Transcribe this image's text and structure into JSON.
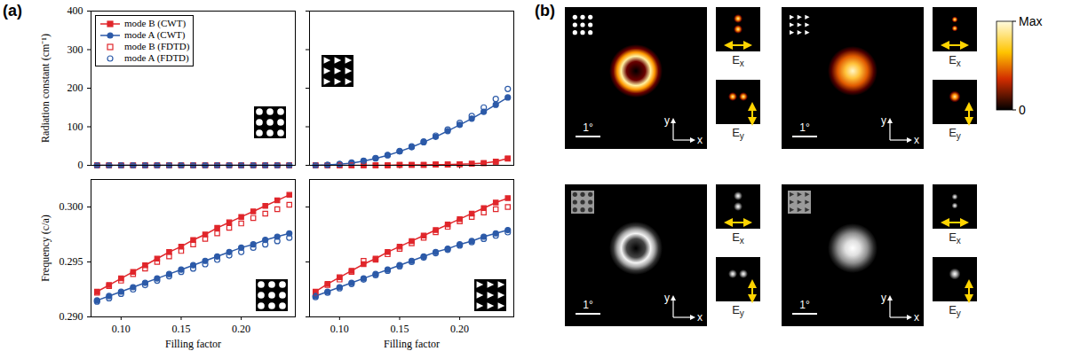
{
  "panel_labels": [
    "(a)",
    "(b)"
  ],
  "chart_data": [
    {
      "type": "line",
      "ylabel": "Radiation constant (cm⁻¹)",
      "xlim": [
        0.075,
        0.245
      ],
      "xticks": [
        {
          "value": 0.1,
          "label": "0.10"
        },
        {
          "value": 0.15,
          "label": "0.15"
        },
        {
          "value": 0.2,
          "label": "0.20"
        }
      ],
      "ylim": [
        0,
        400
      ],
      "yticks": [
        0,
        100,
        200,
        300,
        400
      ],
      "tick_labels": "y",
      "legend": "top-left",
      "x": [
        0.08,
        0.09,
        0.1,
        0.11,
        0.12,
        0.13,
        0.14,
        0.15,
        0.16,
        0.17,
        0.18,
        0.19,
        0.2,
        0.21,
        0.22,
        0.23,
        0.24
      ],
      "series": [
        {
          "name": "mode B (CWT)",
          "type": "line",
          "color": "#e0262b",
          "marker": "square",
          "line_style": "solid",
          "values": [
            0,
            0,
            0,
            0,
            0,
            0,
            0,
            0,
            0,
            0,
            0,
            0,
            0,
            0,
            0,
            0,
            0
          ]
        },
        {
          "name": "mode A (CWT)",
          "type": "line",
          "color": "#2c5aa8",
          "marker": "circle",
          "line_style": "solid",
          "values": [
            0,
            0,
            0,
            0,
            0,
            0,
            0,
            0,
            0,
            0,
            0,
            0,
            0,
            0,
            0,
            0,
            0
          ]
        },
        {
          "name": "mode B (FDTD)",
          "type": "scatter",
          "color": "#e0262b",
          "marker": "open-square",
          "values": [
            0,
            0,
            0,
            0,
            0,
            0,
            0,
            0,
            0,
            0,
            0,
            0,
            0,
            0,
            0,
            0,
            0
          ]
        },
        {
          "name": "mode A (FDTD)",
          "type": "scatter",
          "color": "#2c5aa8",
          "marker": "open-circle",
          "values": [
            0,
            0,
            0,
            0,
            0,
            0,
            0,
            0,
            0,
            0,
            0,
            0,
            0,
            0,
            0,
            0,
            0
          ]
        }
      ]
    },
    {
      "type": "line",
      "xlim": [
        0.075,
        0.245
      ],
      "xticks": [
        {
          "value": 0.1,
          "label": "0.10"
        },
        {
          "value": 0.15,
          "label": "0.15"
        },
        {
          "value": 0.2,
          "label": "0.20"
        }
      ],
      "ylim": [
        0,
        400
      ],
      "yticks": [
        0,
        100,
        200,
        300,
        400
      ],
      "tick_labels": false,
      "x": [
        0.08,
        0.09,
        0.1,
        0.11,
        0.12,
        0.13,
        0.14,
        0.15,
        0.16,
        0.17,
        0.18,
        0.19,
        0.2,
        0.21,
        0.22,
        0.23,
        0.24
      ],
      "series": [
        {
          "name": "mode B (CWT)",
          "type": "line",
          "color": "#e0262b",
          "marker": "square",
          "line_style": "solid",
          "values": [
            0,
            0,
            0,
            0,
            0,
            0,
            0,
            1,
            1,
            1,
            2,
            2,
            3,
            4,
            6,
            10,
            18
          ]
        },
        {
          "name": "mode A (CWT)",
          "type": "line",
          "color": "#2c5aa8",
          "marker": "circle",
          "line_style": "solid",
          "values": [
            0,
            1,
            3,
            6,
            11,
            18,
            26,
            36,
            47,
            60,
            74,
            89,
            105,
            121,
            139,
            157,
            176
          ]
        },
        {
          "name": "mode B (FDTD)",
          "type": "scatter",
          "color": "#e0262b",
          "marker": "open-square",
          "values": [
            0,
            0,
            0,
            0,
            0,
            0,
            0,
            1,
            1,
            1,
            2,
            2,
            3,
            4,
            6,
            9,
            17
          ]
        },
        {
          "name": "mode A (FDTD)",
          "type": "scatter",
          "color": "#2c5aa8",
          "marker": "open-circle",
          "values": [
            0,
            1,
            3,
            7,
            12,
            19,
            27,
            37,
            49,
            62,
            77,
            93,
            110,
            128,
            150,
            172,
            198
          ]
        }
      ]
    },
    {
      "type": "line",
      "xlabel": "Filling factor",
      "ylabel": "Frequency (c/a)",
      "xlim": [
        0.075,
        0.245
      ],
      "xticks": [
        {
          "value": 0.1,
          "label": "0.10"
        },
        {
          "value": 0.15,
          "label": "0.15"
        },
        {
          "value": 0.2,
          "label": "0.20"
        }
      ],
      "ylim": [
        0.29,
        0.3025
      ],
      "yticks": [
        {
          "value": 0.29,
          "label": "0.290"
        },
        {
          "value": 0.295,
          "label": "0.295"
        },
        {
          "value": 0.3,
          "label": "0.300"
        }
      ],
      "x": [
        0.08,
        0.09,
        0.1,
        0.11,
        0.12,
        0.13,
        0.14,
        0.15,
        0.16,
        0.17,
        0.18,
        0.19,
        0.2,
        0.21,
        0.22,
        0.23,
        0.24
      ],
      "series": [
        {
          "name": "mode B (CWT)",
          "type": "line",
          "color": "#e0262b",
          "marker": "square",
          "line_style": "solid",
          "values": [
            0.2923,
            0.2929,
            0.2935,
            0.2941,
            0.2947,
            0.2953,
            0.2959,
            0.2964,
            0.297,
            0.2975,
            0.2981,
            0.2986,
            0.2991,
            0.2996,
            0.3001,
            0.3006,
            0.3011
          ]
        },
        {
          "name": "mode A (CWT)",
          "type": "line",
          "color": "#2c5aa8",
          "marker": "circle",
          "line_style": "solid",
          "values": [
            0.2915,
            0.2919,
            0.2923,
            0.2927,
            0.2931,
            0.2935,
            0.2939,
            0.2943,
            0.2947,
            0.2951,
            0.2955,
            0.2959,
            0.2963,
            0.2966,
            0.297,
            0.2973,
            0.2976
          ]
        },
        {
          "name": "mode B (FDTD)",
          "type": "scatter",
          "color": "#e0262b",
          "marker": "open-square",
          "values": [
            0.2922,
            0.2928,
            0.2933,
            0.2939,
            0.2944,
            0.295,
            0.2955,
            0.296,
            0.2966,
            0.2971,
            0.2976,
            0.2981,
            0.2985,
            0.299,
            0.2994,
            0.2998,
            0.3002
          ]
        },
        {
          "name": "mode A (FDTD)",
          "type": "scatter",
          "color": "#2c5aa8",
          "marker": "open-circle",
          "values": [
            0.2914,
            0.2917,
            0.2921,
            0.2925,
            0.2929,
            0.2933,
            0.2937,
            0.2941,
            0.2944,
            0.2948,
            0.2952,
            0.2956,
            0.2959,
            0.2963,
            0.2966,
            0.2969,
            0.2972
          ]
        }
      ]
    },
    {
      "type": "line",
      "xlabel": "Filling factor",
      "xlim": [
        0.075,
        0.245
      ],
      "xticks": [
        {
          "value": 0.1,
          "label": "0.10"
        },
        {
          "value": 0.15,
          "label": "0.15"
        },
        {
          "value": 0.2,
          "label": "0.20"
        }
      ],
      "ylim": [
        0.29,
        0.3025
      ],
      "yticks": [
        {
          "value": 0.29,
          "label": "0.290"
        },
        {
          "value": 0.295,
          "label": "0.295"
        },
        {
          "value": 0.3,
          "label": "0.300"
        }
      ],
      "tick_labels": "x",
      "x": [
        0.08,
        0.09,
        0.1,
        0.11,
        0.12,
        0.13,
        0.14,
        0.15,
        0.16,
        0.17,
        0.18,
        0.19,
        0.2,
        0.21,
        0.22,
        0.23,
        0.24
      ],
      "series": [
        {
          "name": "mode B (CWT)",
          "type": "line",
          "color": "#e0262b",
          "marker": "square",
          "line_style": "solid",
          "values": [
            0.2923,
            0.293,
            0.2936,
            0.2942,
            0.2948,
            0.2953,
            0.2959,
            0.2964,
            0.2969,
            0.2974,
            0.2979,
            0.2984,
            0.2989,
            0.2994,
            0.2999,
            0.3004,
            0.3008
          ]
        },
        {
          "name": "mode A (CWT)",
          "type": "line",
          "color": "#2c5aa8",
          "marker": "circle",
          "line_style": "solid",
          "values": [
            0.2919,
            0.2923,
            0.2927,
            0.2931,
            0.2935,
            0.2939,
            0.2943,
            0.2947,
            0.2951,
            0.2955,
            0.2959,
            0.2962,
            0.2966,
            0.2969,
            0.2973,
            0.2976,
            0.2979
          ]
        },
        {
          "name": "mode B (FDTD)",
          "type": "scatter",
          "color": "#e0262b",
          "marker": "open-square",
          "values": [
            0.2922,
            0.2929,
            0.2934,
            0.2941,
            0.2951,
            0.2952,
            0.2957,
            0.2962,
            0.2967,
            0.2972,
            0.2977,
            0.2982,
            0.2987,
            0.2991,
            0.2995,
            0.2998,
            0.3
          ]
        },
        {
          "name": "mode A (FDTD)",
          "type": "scatter",
          "color": "#2c5aa8",
          "marker": "open-circle",
          "values": [
            0.2918,
            0.2922,
            0.2926,
            0.293,
            0.2934,
            0.2938,
            0.2942,
            0.2946,
            0.295,
            0.2954,
            0.2958,
            0.2961,
            0.2965,
            0.2968,
            0.2971,
            0.2974,
            0.2977
          ]
        }
      ]
    }
  ],
  "far_field": {
    "scale_bar": "1°",
    "axis_labels": {
      "x": "x",
      "y": "y"
    },
    "components": [
      "Ex",
      "Ey"
    ],
    "colorbar": {
      "range": [
        0,
        1
      ],
      "ticks": [
        {
          "value": 1,
          "label": "Max"
        },
        0
      ]
    }
  }
}
